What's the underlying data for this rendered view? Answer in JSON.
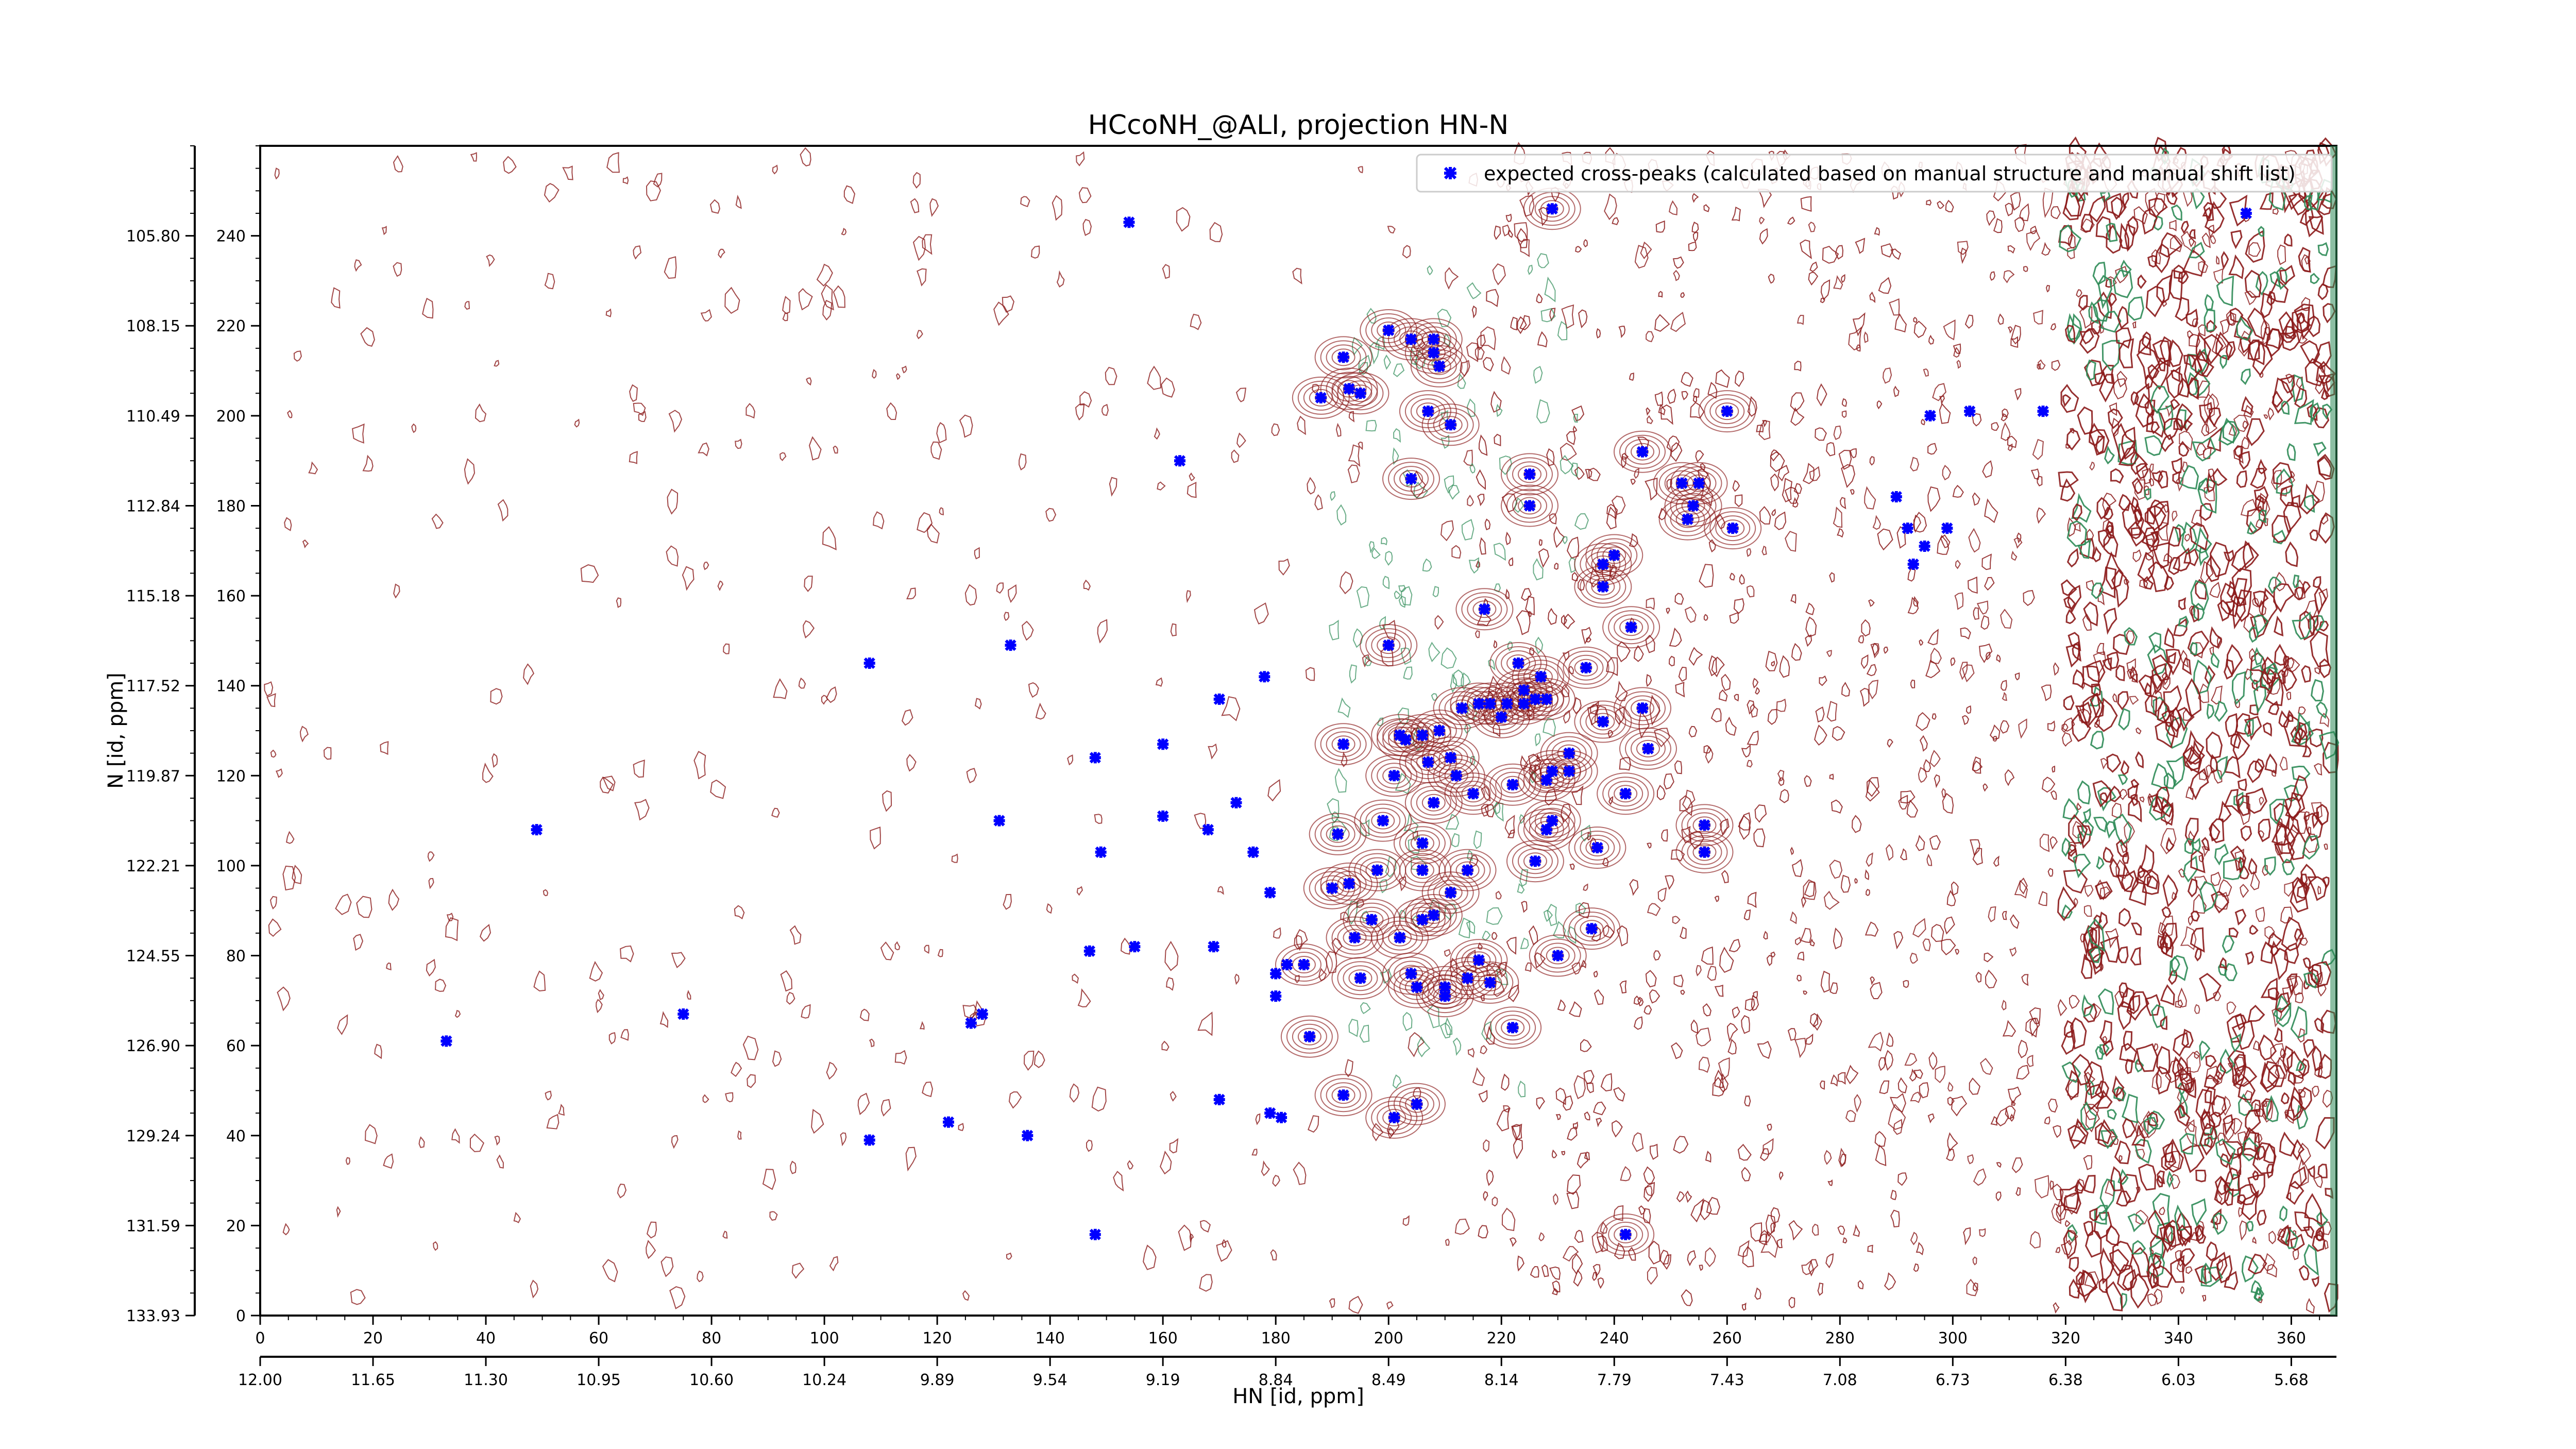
{
  "chart_data": {
    "type": "scatter",
    "title": "HCcoNH_@ALI, projection HN-N",
    "xlabel": "HN [id, ppm]",
    "ylabel": "N [id, ppm]",
    "x_index_range": [
      0,
      368
    ],
    "y_index_range": [
      0,
      260
    ],
    "x_index_ticks": [
      "0",
      "20",
      "40",
      "60",
      "80",
      "100",
      "120",
      "140",
      "160",
      "180",
      "200",
      "220",
      "240",
      "260",
      "280",
      "300",
      "320",
      "340",
      "360"
    ],
    "x_ppm_ticks": [
      "12.00",
      "11.65",
      "11.30",
      "10.95",
      "10.60",
      "10.24",
      "9.89",
      "9.54",
      "9.19",
      "8.84",
      "8.49",
      "8.14",
      "7.79",
      "7.43",
      "7.08",
      "6.73",
      "6.38",
      "6.03",
      "5.68"
    ],
    "y_index_ticks": [
      "0",
      "20",
      "40",
      "60",
      "80",
      "100",
      "120",
      "140",
      "160",
      "180",
      "200",
      "220",
      "240"
    ],
    "y_ppm_ticks": [
      "133.93",
      "131.59",
      "129.24",
      "126.90",
      "124.55",
      "122.21",
      "119.87",
      "117.52",
      "115.18",
      "112.84",
      "110.49",
      "108.15",
      "105.80"
    ],
    "legend": {
      "position": "top-right",
      "label": "expected cross-peaks (calculated based on manual structure and manual shift list)"
    },
    "colors": {
      "peak_marker": "#0000ff",
      "positive_contour": "#8b1a1a",
      "negative_contour": "#2e8b57"
    },
    "series": [
      {
        "name": "expected cross-peaks (calculated based on manual structure and manual shift list)",
        "points": [
          [
            33,
            61
          ],
          [
            49,
            108
          ],
          [
            75,
            67
          ],
          [
            108,
            39
          ],
          [
            108,
            145
          ],
          [
            122,
            43
          ],
          [
            126,
            65
          ],
          [
            128,
            67
          ],
          [
            131,
            110
          ],
          [
            133,
            149
          ],
          [
            136,
            40
          ],
          [
            147,
            81
          ],
          [
            148,
            18
          ],
          [
            148,
            124
          ],
          [
            149,
            103
          ],
          [
            154,
            243
          ],
          [
            155,
            82
          ],
          [
            160,
            111
          ],
          [
            160,
            127
          ],
          [
            163,
            190
          ],
          [
            168,
            108
          ],
          [
            169,
            82
          ],
          [
            170,
            48
          ],
          [
            170,
            137
          ],
          [
            173,
            114
          ],
          [
            176,
            103
          ],
          [
            178,
            142
          ],
          [
            179,
            45
          ],
          [
            179,
            94
          ],
          [
            180,
            71
          ],
          [
            180,
            76
          ],
          [
            181,
            44
          ],
          [
            182,
            78
          ],
          [
            185,
            78
          ],
          [
            186,
            62
          ],
          [
            188,
            204
          ],
          [
            190,
            95
          ],
          [
            191,
            107
          ],
          [
            192,
            49
          ],
          [
            192,
            127
          ],
          [
            192,
            213
          ],
          [
            193,
            96
          ],
          [
            193,
            206
          ],
          [
            194,
            84
          ],
          [
            195,
            205
          ],
          [
            195,
            75
          ],
          [
            197,
            88
          ],
          [
            198,
            99
          ],
          [
            199,
            110
          ],
          [
            200,
            219
          ],
          [
            200,
            149
          ],
          [
            201,
            44
          ],
          [
            202,
            84
          ],
          [
            201,
            120
          ],
          [
            202,
            129
          ],
          [
            203,
            128
          ],
          [
            204,
            217
          ],
          [
            204,
            76
          ],
          [
            204,
            186
          ],
          [
            205,
            47
          ],
          [
            205,
            73
          ],
          [
            206,
            88
          ],
          [
            206,
            99
          ],
          [
            206,
            105
          ],
          [
            206,
            129
          ],
          [
            207,
            123
          ],
          [
            207,
            201
          ],
          [
            208,
            89
          ],
          [
            208,
            114
          ],
          [
            208,
            214
          ],
          [
            208,
            217
          ],
          [
            209,
            211
          ],
          [
            209,
            130
          ],
          [
            210,
            71
          ],
          [
            210,
            73
          ],
          [
            211,
            94
          ],
          [
            211,
            198
          ],
          [
            211,
            124
          ],
          [
            212,
            120
          ],
          [
            213,
            135
          ],
          [
            214,
            75
          ],
          [
            214,
            99
          ],
          [
            215,
            116
          ],
          [
            216,
            136
          ],
          [
            216,
            79
          ],
          [
            217,
            157
          ],
          [
            218,
            136
          ],
          [
            218,
            74
          ],
          [
            220,
            133
          ],
          [
            221,
            136
          ],
          [
            222,
            64
          ],
          [
            222,
            118
          ],
          [
            223,
            145
          ],
          [
            224,
            136
          ],
          [
            224,
            139
          ],
          [
            225,
            180
          ],
          [
            225,
            187
          ],
          [
            226,
            137
          ],
          [
            226,
            101
          ],
          [
            227,
            142
          ],
          [
            228,
            108
          ],
          [
            228,
            119
          ],
          [
            228,
            137
          ],
          [
            229,
            110
          ],
          [
            229,
            121
          ],
          [
            229,
            246
          ],
          [
            230,
            80
          ],
          [
            232,
            121
          ],
          [
            232,
            125
          ],
          [
            235,
            144
          ],
          [
            236,
            86
          ],
          [
            237,
            104
          ],
          [
            238,
            162
          ],
          [
            238,
            167
          ],
          [
            238,
            132
          ],
          [
            240,
            169
          ],
          [
            242,
            116
          ],
          [
            242,
            18
          ],
          [
            243,
            153
          ],
          [
            245,
            135
          ],
          [
            245,
            192
          ],
          [
            246,
            126
          ],
          [
            252,
            185
          ],
          [
            253,
            177
          ],
          [
            254,
            180
          ],
          [
            255,
            185
          ],
          [
            256,
            103
          ],
          [
            256,
            109
          ],
          [
            260,
            201
          ],
          [
            261,
            175
          ],
          [
            290,
            182
          ],
          [
            292,
            175
          ],
          [
            293,
            167
          ],
          [
            295,
            171
          ],
          [
            296,
            200
          ],
          [
            299,
            175
          ],
          [
            303,
            201
          ],
          [
            316,
            201
          ],
          [
            352,
            245
          ]
        ]
      }
    ]
  }
}
